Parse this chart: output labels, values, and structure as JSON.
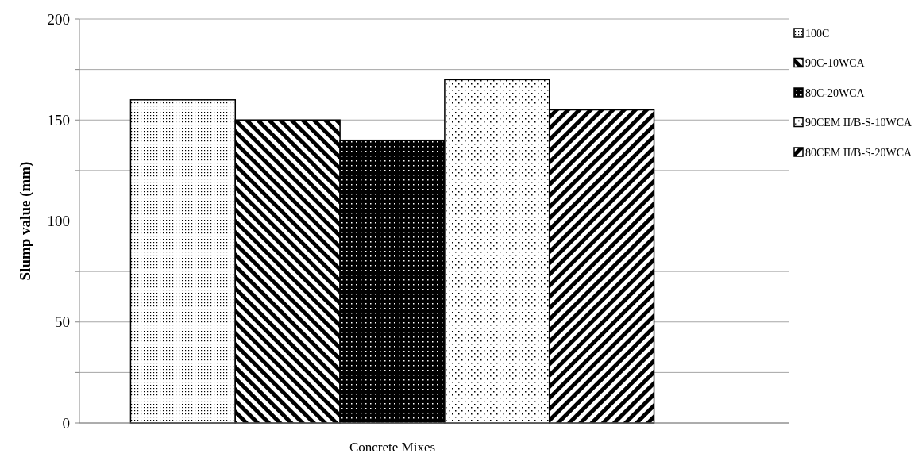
{
  "chart_data": {
    "type": "bar",
    "xlabel": "Concrete Mixes",
    "ylabel": "Slump value (mm)",
    "categories": [
      null
    ],
    "series": [
      {
        "name": "100C",
        "color": "#000000",
        "values": [
          160
        ]
      },
      {
        "name": "90C-10WCA",
        "color": "#000000",
        "values": [
          150
        ]
      },
      {
        "name": "80C-20WCA",
        "color": "#000000",
        "values": [
          140
        ]
      },
      {
        "name": "90CEM II/B-S-10WCA",
        "color": "#000000",
        "values": [
          170
        ]
      },
      {
        "name": "80CEM II/B-S-20WCA",
        "color": "#000000",
        "values": [
          155
        ]
      }
    ],
    "ylim": [
      0,
      200
    ],
    "yticks": [
      0,
      {
        "value": 25,
        "label": null
      },
      50,
      {
        "value": 75,
        "label": null
      },
      100,
      {
        "value": 125,
        "label": null
      },
      150,
      {
        "value": 175,
        "label": null
      },
      200
    ],
    "grid": "y",
    "legend": "right"
  }
}
